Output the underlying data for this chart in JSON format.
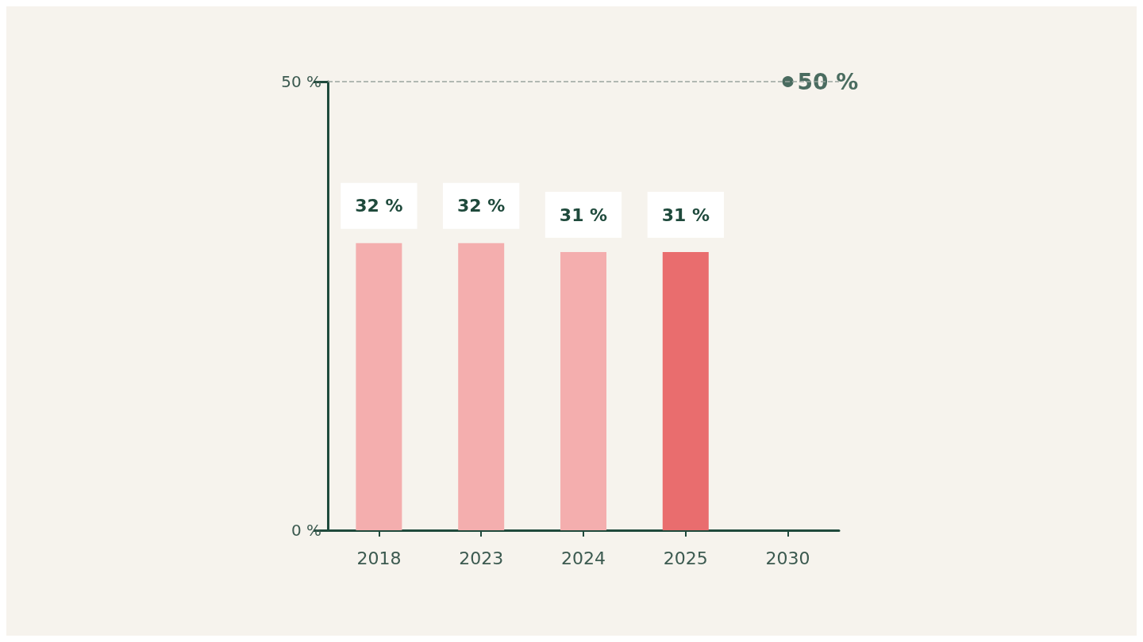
{
  "chart_data": {
    "type": "bar",
    "categories": [
      "2018",
      "2023",
      "2024",
      "2025",
      "2030"
    ],
    "series": [
      {
        "values": [
          32,
          32,
          31,
          31,
          null
        ],
        "colors": [
          "#f4aeae",
          "#f4aeae",
          "#f4aeae",
          "#e96d6e",
          null
        ],
        "value_labels": [
          "32 %",
          "32 %",
          "31 %",
          "31 %",
          null
        ]
      },
      {
        "type": "scatter",
        "values": [
          null,
          null,
          null,
          null,
          50
        ],
        "color": "#1f4a3c",
        "value_labels": [
          null,
          null,
          null,
          null,
          "50 %"
        ],
        "marker": "circle"
      }
    ],
    "ylim": [
      0,
      50
    ],
    "yticks": [
      {
        "value": 0,
        "label": "0 %"
      },
      {
        "value": 50,
        "label": "50 %"
      }
    ],
    "ref_lines": [
      {
        "axis": "y",
        "value": 50,
        "label": null,
        "color": "#9aa59f",
        "line_style": "dashed"
      }
    ],
    "grid": false
  }
}
